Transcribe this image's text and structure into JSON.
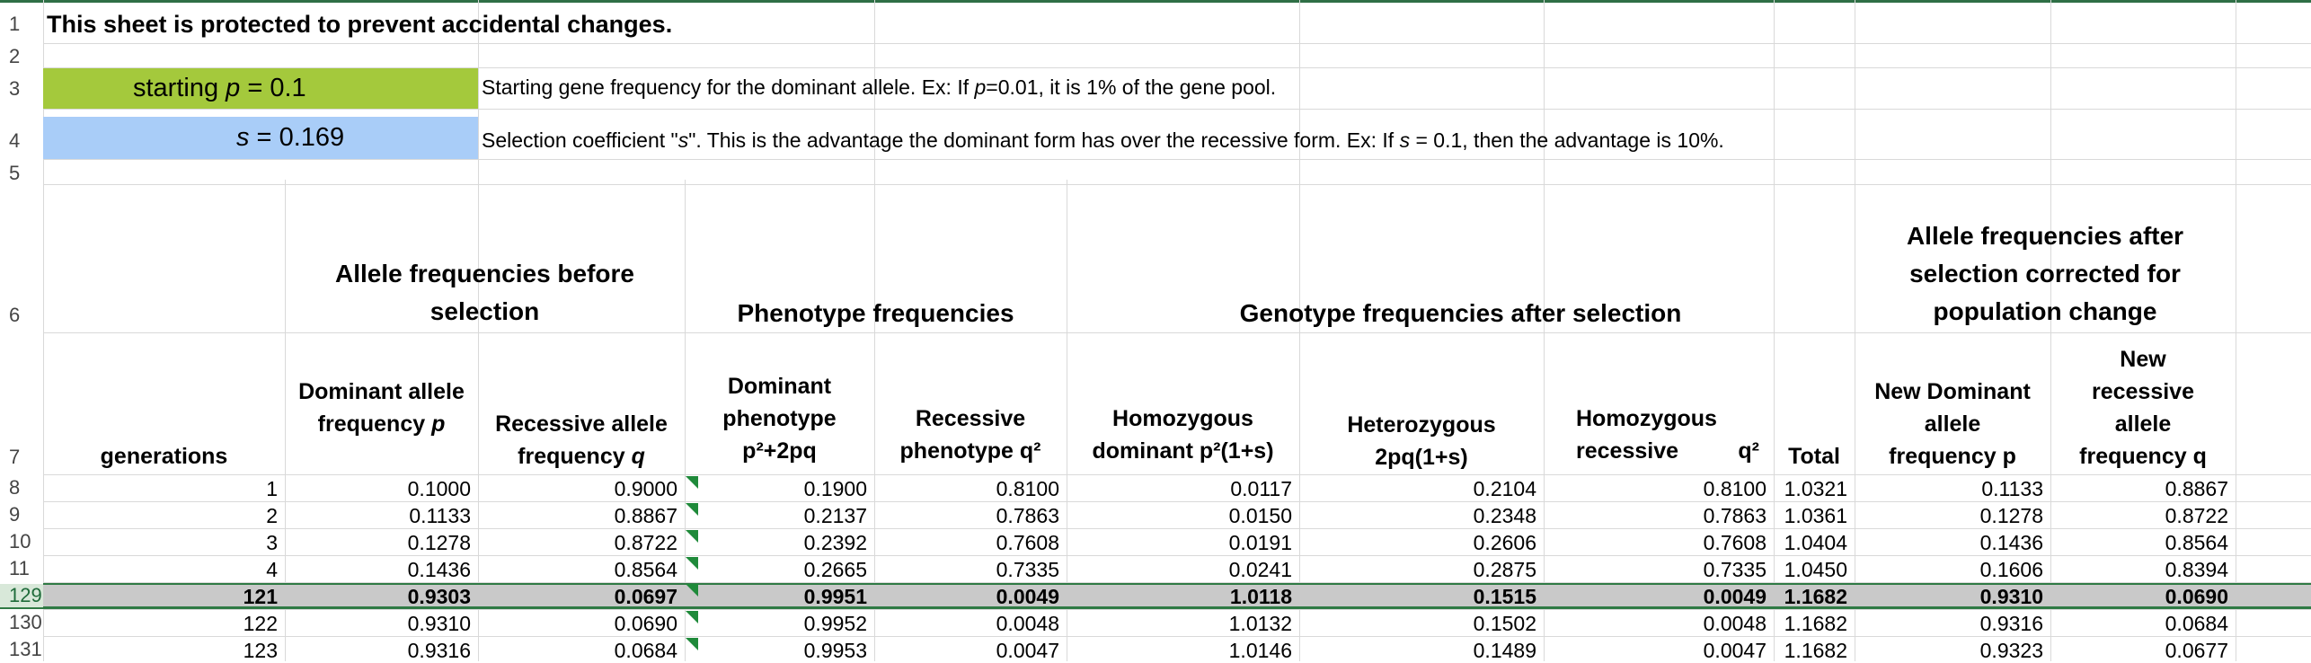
{
  "row_numbers": [
    "1",
    "2",
    "3",
    "4",
    "5",
    "6",
    "7",
    "8",
    "9",
    "10",
    "11",
    "129",
    "130",
    "131"
  ],
  "title": "This sheet is protected to prevent accidental changes.",
  "starting_p": {
    "label": "starting",
    "var": "p",
    "eq": " = ",
    "value": "0.1",
    "description": "Starting gene frequency for the dominant allele. Ex: If ",
    "desc_var": "p",
    "desc_tail": "=0.01, it is 1% of the gene pool."
  },
  "s": {
    "var": "s",
    "eq": " = ",
    "value": "0.169",
    "description": "Selection coefficient \"",
    "desc_var": "s",
    "desc_mid": "\". This is the advantage the dominant form has over the recessive form. Ex: If ",
    "desc_var2": "s",
    "desc_tail": " = 0.1, then the advantage is 10%."
  },
  "section_headers": {
    "before": "Allele frequencies before selection",
    "phenotype": "Phenotype frequencies",
    "genotype": "Genotype frequencies after selection",
    "after": "Allele frequencies after selection corrected for population change"
  },
  "columns": {
    "generations": "generations",
    "dom_freq_a": "Dominant allele",
    "dom_freq_b": "frequency ",
    "dom_freq_var": "p",
    "rec_freq_a": "Recessive allele",
    "rec_freq_b": "frequency ",
    "rec_freq_var": "q",
    "dom_pheno_a": "Dominant",
    "dom_pheno_b": "phenotype",
    "dom_pheno_c": "p²+2pq",
    "rec_pheno_a": "Recessive",
    "rec_pheno_b": "phenotype q²",
    "homo_dom_a": "Homozygous",
    "homo_dom_b": "dominant p²(1+s)",
    "hetero_a": "Heterozygous",
    "hetero_b": "2pq(1+s)",
    "homo_rec_a": "Homozygous",
    "homo_rec_b": "recessive",
    "homo_rec_c": "q²",
    "total": "Total",
    "new_dom_a": "New Dominant",
    "new_dom_b": "allele",
    "new_dom_c": "frequency p",
    "new_rec_a": "New",
    "new_rec_b": "recessive",
    "new_rec_c": "allele",
    "new_rec_d": "frequency q"
  },
  "rows": [
    [
      "1",
      "0.1000",
      "0.9000",
      "0.1900",
      "0.8100",
      "0.0117",
      "0.2104",
      "0.8100",
      "1.0321",
      "0.1133",
      "0.8867"
    ],
    [
      "2",
      "0.1133",
      "0.8867",
      "0.2137",
      "0.7863",
      "0.0150",
      "0.2348",
      "0.7863",
      "1.0361",
      "0.1278",
      "0.8722"
    ],
    [
      "3",
      "0.1278",
      "0.8722",
      "0.2392",
      "0.7608",
      "0.0191",
      "0.2606",
      "0.7608",
      "1.0404",
      "0.1436",
      "0.8564"
    ],
    [
      "4",
      "0.1436",
      "0.8564",
      "0.2665",
      "0.7335",
      "0.0241",
      "0.2875",
      "0.7335",
      "1.0450",
      "0.1606",
      "0.8394"
    ],
    [
      "121",
      "0.9303",
      "0.0697",
      "0.9951",
      "0.0049",
      "1.0118",
      "0.1515",
      "0.0049",
      "1.1682",
      "0.9310",
      "0.0690"
    ],
    [
      "122",
      "0.9310",
      "0.0690",
      "0.9952",
      "0.0048",
      "1.0132",
      "0.1502",
      "0.0048",
      "1.1682",
      "0.9316",
      "0.0684"
    ],
    [
      "123",
      "0.9316",
      "0.0684",
      "0.9953",
      "0.0047",
      "1.0146",
      "0.1489",
      "0.0047",
      "1.1682",
      "0.9323",
      "0.0677"
    ]
  ]
}
